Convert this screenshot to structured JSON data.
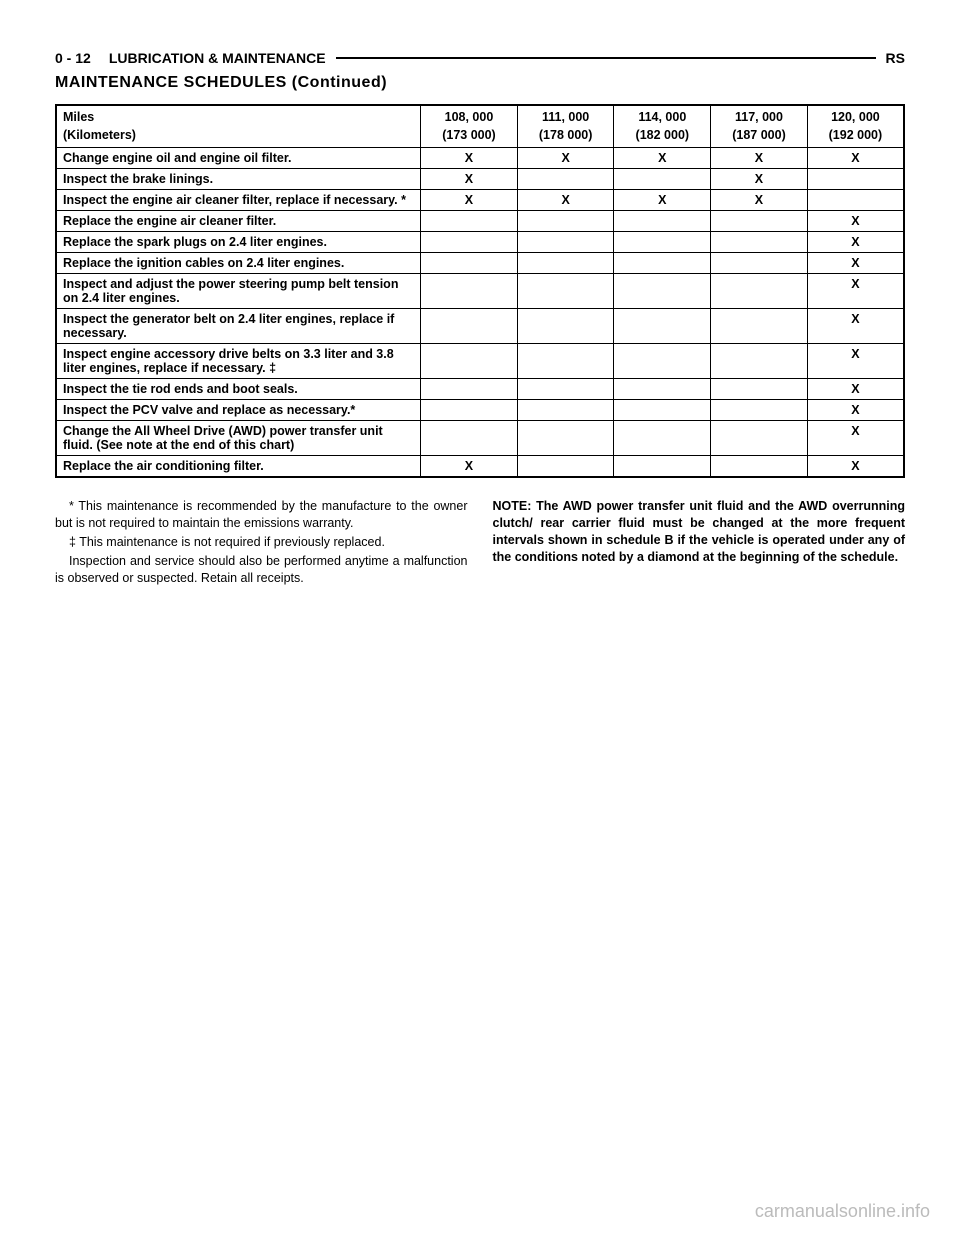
{
  "header": {
    "page_num": "0 - 12",
    "section": "LUBRICATION & MAINTENANCE",
    "code": "RS"
  },
  "subtitle": "MAINTENANCE SCHEDULES (Continued)",
  "table": {
    "header_left_line1": "Miles",
    "header_left_line2": "(Kilometers)",
    "columns": [
      {
        "miles": "108, 000",
        "km": "(173 000)"
      },
      {
        "miles": "111, 000",
        "km": "(178 000)"
      },
      {
        "miles": "114, 000",
        "km": "(182 000)"
      },
      {
        "miles": "117, 000",
        "km": "(187 000)"
      },
      {
        "miles": "120, 000",
        "km": "(192 000)"
      }
    ],
    "rows": [
      {
        "desc": "Change engine oil and engine oil filter.",
        "vals": [
          "X",
          "X",
          "X",
          "X",
          "X"
        ]
      },
      {
        "desc": "Inspect the brake linings.",
        "vals": [
          "X",
          "",
          "",
          "X",
          ""
        ]
      },
      {
        "desc": "Inspect the engine air cleaner filter, replace if necessary. *",
        "vals": [
          "X",
          "X",
          "X",
          "X",
          ""
        ]
      },
      {
        "desc": "Replace the engine air cleaner filter.",
        "vals": [
          "",
          "",
          "",
          "",
          "X"
        ]
      },
      {
        "desc": "Replace the spark plugs on 2.4 liter engines.",
        "vals": [
          "",
          "",
          "",
          "",
          "X"
        ]
      },
      {
        "desc": "Replace the ignition cables on 2.4 liter engines.",
        "vals": [
          "",
          "",
          "",
          "",
          "X"
        ]
      },
      {
        "desc": "Inspect and adjust the power steering pump belt tension on 2.4 liter engines.",
        "vals": [
          "",
          "",
          "",
          "",
          "X"
        ]
      },
      {
        "desc": "Inspect the generator belt on 2.4 liter engines, replace if necessary.",
        "vals": [
          "",
          "",
          "",
          "",
          "X"
        ]
      },
      {
        "desc": "Inspect engine accessory drive belts on 3.3 liter and 3.8 liter engines, replace if necessary. ‡",
        "vals": [
          "",
          "",
          "",
          "",
          "X"
        ]
      },
      {
        "desc": "Inspect the tie rod ends and boot seals.",
        "vals": [
          "",
          "",
          "",
          "",
          "X"
        ]
      },
      {
        "desc": "Inspect the PCV valve and replace as necessary.*",
        "vals": [
          "",
          "",
          "",
          "",
          "X"
        ]
      },
      {
        "desc": "Change the All Wheel Drive (AWD) power transfer unit fluid. (See note at the end of this chart)",
        "vals": [
          "",
          "",
          "",
          "",
          "X"
        ]
      },
      {
        "desc": "Replace the air conditioning filter.",
        "vals": [
          "X",
          "",
          "",
          "",
          "X"
        ]
      }
    ]
  },
  "notes": {
    "left_p1": "* This maintenance is recommended by the manufacture to the owner but is not required to maintain the emissions warranty.",
    "left_p2": "‡ This maintenance is not required if previously replaced.",
    "left_p3": "Inspection and service should also be performed anytime a malfunction is observed or suspected. Retain all receipts.",
    "right": "NOTE: The AWD power transfer unit fluid and the AWD overrunning clutch/ rear carrier fluid must be changed at the more frequent intervals shown in schedule B if the vehicle is operated under any of the conditions noted by a diamond at the beginning of the schedule."
  },
  "watermark": "carmanualsonline.info"
}
